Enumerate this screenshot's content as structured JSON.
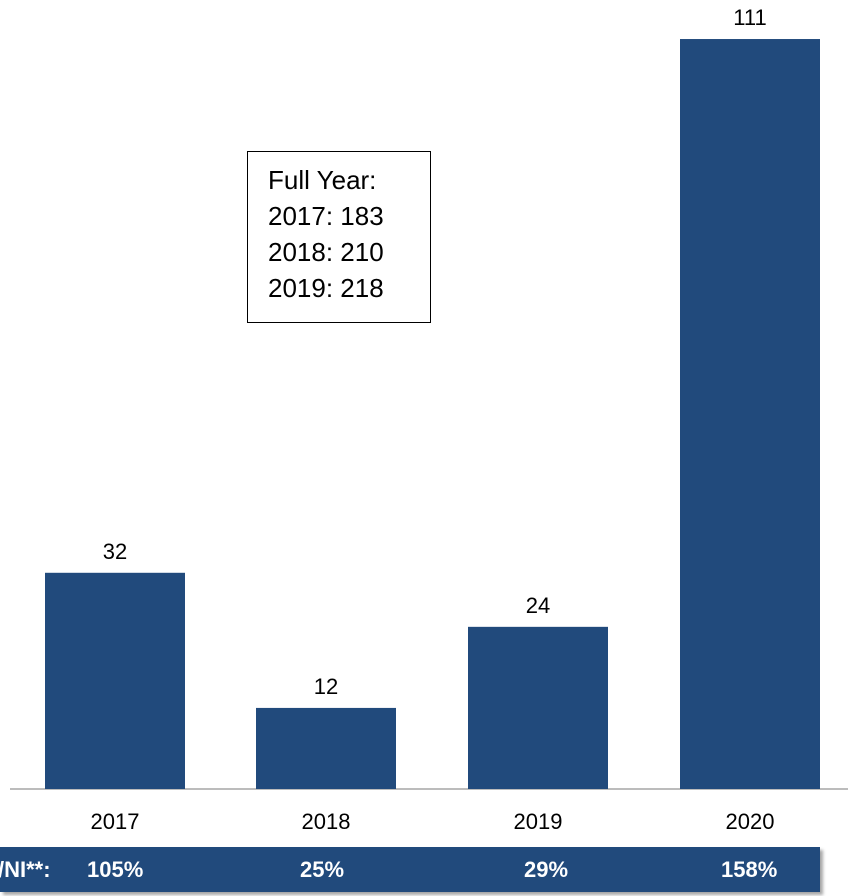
{
  "chart_data": {
    "type": "bar",
    "categories": [
      "2017",
      "2018",
      "2019",
      "2020"
    ],
    "values": [
      32,
      12,
      24,
      111
    ],
    "data_labels": [
      "32",
      "12",
      "24",
      "111"
    ],
    "ylim": [
      0,
      115
    ],
    "bar_color": "#214A7C",
    "grid": false,
    "annotation": {
      "title": "Full Year:",
      "lines": [
        "2017: 183",
        "2018: 210",
        "2019: 218"
      ]
    }
  },
  "footer": {
    "label": "/NI**:",
    "values": [
      "105%",
      "25%",
      "29%",
      "158%"
    ],
    "background": "#214A7C",
    "text_color": "#FFFFFF"
  }
}
